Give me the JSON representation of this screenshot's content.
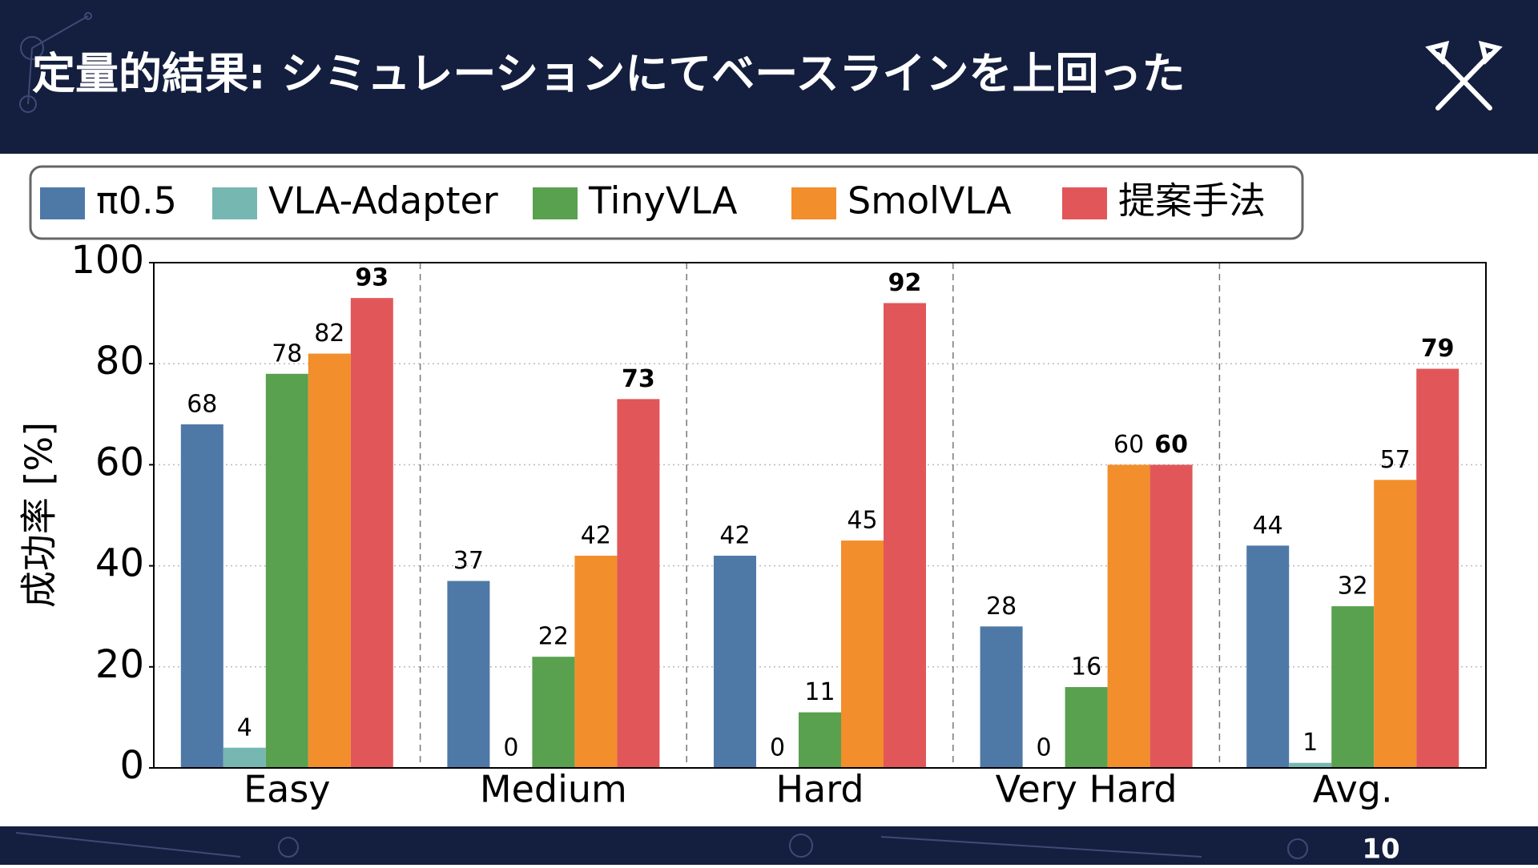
{
  "header": {
    "title": "定量的結果: シミュレーションにてベースラインを上回った"
  },
  "page_number": "10",
  "chart_data": {
    "type": "bar",
    "ylabel": "成功率 [%]",
    "categories": [
      "Easy",
      "Medium",
      "Hard",
      "Very Hard",
      "Avg."
    ],
    "series": [
      {
        "name": "π0.5",
        "color": "#4e79a7",
        "values": [
          68,
          37,
          42,
          28,
          44
        ]
      },
      {
        "name": "VLA-Adapter",
        "color": "#76b7b2",
        "values": [
          4,
          0,
          0,
          0,
          1
        ]
      },
      {
        "name": "TinyVLA",
        "color": "#59a14f",
        "values": [
          78,
          22,
          11,
          16,
          32
        ]
      },
      {
        "name": "SmolVLA",
        "color": "#f28e2b",
        "values": [
          82,
          42,
          45,
          60,
          57
        ]
      },
      {
        "name": "提案手法",
        "color": "#e15759",
        "values": [
          93,
          73,
          92,
          60,
          79
        ]
      }
    ],
    "ylim": [
      0,
      100
    ],
    "yticks": [
      0,
      20,
      40,
      60,
      80,
      100
    ],
    "grid": true,
    "legend": "top"
  }
}
